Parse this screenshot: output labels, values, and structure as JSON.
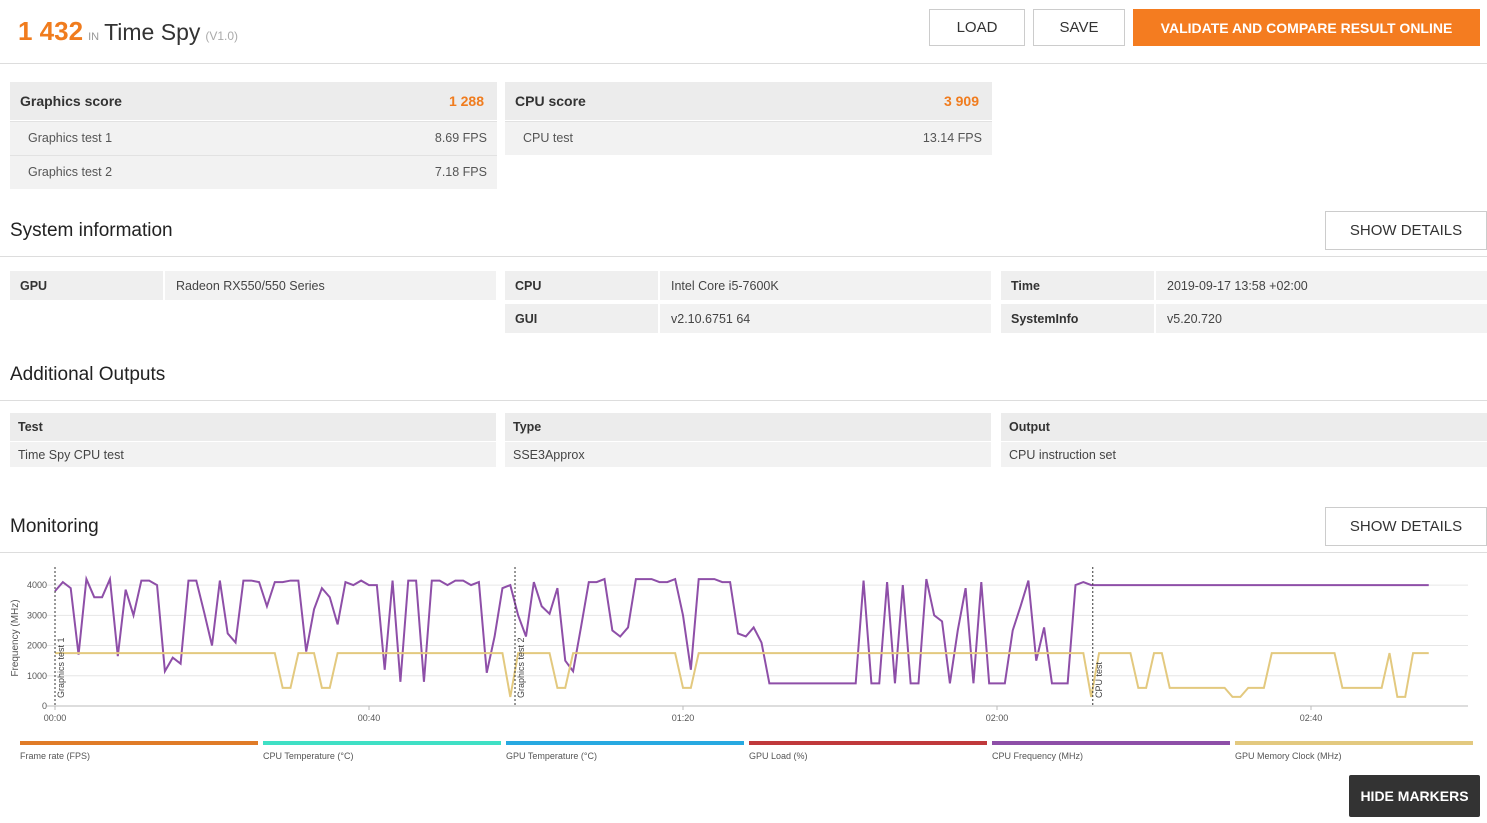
{
  "header": {
    "score": "1 432",
    "in": "IN",
    "title": "Time Spy",
    "version": "(V1.0)"
  },
  "buttons": {
    "load": "LOAD",
    "save": "SAVE",
    "validate": "VALIDATE AND COMPARE RESULT ONLINE",
    "hide_markers": "HIDE MARKERS"
  },
  "scores": [
    {
      "title": "Graphics score",
      "value": "1 288",
      "rows": [
        [
          "Graphics test 1",
          "8.69 FPS"
        ],
        [
          "Graphics test 2",
          "7.18 FPS"
        ]
      ]
    },
    {
      "title": "CPU score",
      "value": "3 909",
      "rows": [
        [
          "CPU test",
          "13.14 FPS"
        ]
      ]
    }
  ],
  "system_information": {
    "heading": "System information",
    "show_details": "SHOW DETAILS",
    "columns": [
      [
        [
          "GPU",
          "Radeon RX550/550 Series"
        ]
      ],
      [
        [
          "CPU",
          "Intel Core i5-7600K"
        ],
        [
          "GUI",
          "v2.10.6751 64"
        ]
      ],
      [
        [
          "Time",
          "2019-09-17 13:58 +02:00"
        ],
        [
          "SystemInfo",
          "v5.20.720"
        ]
      ]
    ]
  },
  "additional_outputs": {
    "heading": "Additional Outputs",
    "headers": [
      "Test",
      "Type",
      "Output"
    ],
    "rows": [
      [
        "Time Spy CPU test",
        "SSE3Approx",
        "CPU instruction set"
      ]
    ]
  },
  "monitoring": {
    "heading": "Monitoring",
    "show_details": "SHOW DETAILS"
  },
  "chart_data": {
    "type": "line",
    "y_label": "Frequency (MHz)",
    "x": [
      0,
      1,
      2,
      3,
      4,
      5,
      6,
      7,
      8,
      9,
      10,
      11,
      12,
      13,
      14,
      15,
      16,
      17,
      18,
      19,
      20,
      21,
      22,
      23,
      24,
      25,
      26,
      27,
      28,
      29,
      30,
      31,
      32,
      33,
      34,
      35,
      36,
      37,
      38,
      39,
      40,
      41,
      42,
      43,
      44,
      45,
      46,
      47,
      48,
      49,
      50,
      51,
      52,
      53,
      54,
      55,
      56,
      57,
      58,
      59,
      60,
      61,
      62,
      63,
      64,
      65,
      66,
      67,
      68,
      69,
      70,
      71,
      72,
      73,
      74,
      75,
      76,
      77,
      78,
      79,
      80,
      81,
      82,
      83,
      84,
      85,
      86,
      87,
      88,
      89,
      90,
      91,
      92,
      93,
      94,
      95,
      96,
      97,
      98,
      99,
      100,
      101,
      102,
      103,
      104,
      105,
      106,
      107,
      108,
      109,
      110,
      111,
      112,
      113,
      114,
      115,
      116,
      117,
      118,
      119,
      120,
      121,
      122,
      123,
      124,
      125,
      126,
      127,
      128,
      129,
      130,
      131,
      132,
      133,
      134,
      135,
      136,
      137,
      138,
      139,
      140,
      141,
      142,
      143,
      144,
      145,
      146,
      147,
      148,
      149,
      150,
      151,
      152,
      153,
      154,
      155,
      156,
      157,
      158,
      159,
      160,
      161,
      162,
      163,
      164,
      165,
      166,
      167,
      168,
      169,
      170,
      171,
      172,
      173,
      174,
      175
    ],
    "xlim": [
      0,
      180
    ],
    "xticks": [
      {
        "value": 0,
        "label": "00:00"
      },
      {
        "value": 40,
        "label": "00:40"
      },
      {
        "value": 80,
        "label": "01:20"
      },
      {
        "value": 120,
        "label": "02:00"
      },
      {
        "value": 160,
        "label": "02:40"
      }
    ],
    "ylim": [
      0,
      4500
    ],
    "yticks": [
      0,
      1000,
      2000,
      3000,
      4000
    ],
    "grid": true,
    "markers": [
      {
        "label": "Graphics test 1",
        "x": 0
      },
      {
        "label": "Graphics test 2",
        "x": 58.6
      },
      {
        "label": "CPU test",
        "x": 132.2
      }
    ],
    "series": [
      {
        "name": "Frame rate (FPS)",
        "color": "#e07b27",
        "values": null
      },
      {
        "name": "CPU Temperature (°C)",
        "color": "#3fe0c5",
        "values": null
      },
      {
        "name": "GPU Temperature (°C)",
        "color": "#27a9e1",
        "values": null
      },
      {
        "name": "GPU Load (%)",
        "color": "#c0393b",
        "values": null
      },
      {
        "name": "CPU Frequency (MHz)",
        "color": "#8e4fa8",
        "values": [
          3800,
          4100,
          3900,
          1700,
          4200,
          3600,
          3600,
          4200,
          1650,
          3850,
          3000,
          4150,
          4150,
          4000,
          1150,
          1600,
          1400,
          4150,
          4150,
          3100,
          2000,
          4150,
          2400,
          2100,
          4150,
          4150,
          4100,
          3300,
          4100,
          4100,
          4150,
          4150,
          1800,
          3200,
          3900,
          3600,
          2700,
          4100,
          4000,
          4150,
          4000,
          4000,
          1200,
          4150,
          800,
          4150,
          4150,
          800,
          4150,
          4150,
          4000,
          4150,
          4150,
          4000,
          4100,
          1100,
          2300,
          3900,
          4000,
          3000,
          2300,
          4100,
          3300,
          3050,
          3900,
          1500,
          1150,
          2600,
          4100,
          4100,
          4200,
          2500,
          2300,
          2600,
          4200,
          4200,
          4200,
          4100,
          4100,
          4200,
          3000,
          1200,
          4200,
          4200,
          4200,
          4100,
          4100,
          2400,
          2300,
          2600,
          2100,
          750,
          750,
          750,
          750,
          750,
          750,
          750,
          750,
          750,
          750,
          750,
          750,
          4150,
          750,
          750,
          4100,
          750,
          4000,
          750,
          750,
          4200,
          3000,
          2800,
          750,
          2500,
          3900,
          750,
          4100,
          750,
          750,
          750,
          2500,
          3300,
          4150,
          1500,
          2600,
          750,
          750,
          750,
          4000,
          4100,
          4000,
          4000,
          4000,
          4000,
          4000,
          4000,
          4000,
          4000,
          4000,
          4000,
          4000,
          4000,
          4000,
          4000,
          4000,
          4000,
          4000,
          4000,
          4000,
          4000,
          4000,
          4000,
          4000,
          4000,
          4000,
          4000,
          4000,
          4000,
          4000,
          4000,
          4000,
          4000,
          4000,
          4000,
          4000,
          4000,
          4000,
          4000,
          4000,
          4000,
          4000,
          4000,
          4000,
          4000
        ]
      },
      {
        "name": "GPU Memory Clock (MHz)",
        "color": "#e3c97f",
        "values": [
          1750,
          1750,
          1750,
          1750,
          1750,
          1750,
          1750,
          1750,
          1750,
          1750,
          1750,
          1750,
          1750,
          1750,
          1750,
          1750,
          1750,
          1750,
          1750,
          1750,
          1750,
          1750,
          1750,
          1750,
          1750,
          1750,
          1750,
          1750,
          1750,
          600,
          600,
          1750,
          1750,
          1750,
          600,
          600,
          1750,
          1750,
          1750,
          1750,
          1750,
          1750,
          1750,
          1750,
          1750,
          1750,
          1750,
          1750,
          1750,
          1750,
          1750,
          1750,
          1750,
          1750,
          1750,
          1750,
          1750,
          1750,
          300,
          1750,
          1750,
          1750,
          1750,
          1750,
          600,
          600,
          1750,
          1750,
          1750,
          1750,
          1750,
          1750,
          1750,
          1750,
          1750,
          1750,
          1750,
          1750,
          1750,
          1750,
          600,
          600,
          1750,
          1750,
          1750,
          1750,
          1750,
          1750,
          1750,
          1750,
          1750,
          1750,
          1750,
          1750,
          1750,
          1750,
          1750,
          1750,
          1750,
          1750,
          1750,
          1750,
          1750,
          1750,
          1750,
          1750,
          1750,
          1750,
          1750,
          1750,
          1750,
          1750,
          1750,
          1750,
          1750,
          1750,
          1750,
          1750,
          1750,
          1750,
          1750,
          1750,
          1750,
          1750,
          1750,
          1750,
          1750,
          1750,
          1750,
          1750,
          1750,
          1750,
          300,
          1750,
          1750,
          1750,
          1750,
          1750,
          600,
          600,
          1750,
          1750,
          600,
          600,
          600,
          600,
          600,
          600,
          600,
          600,
          300,
          300,
          600,
          600,
          600,
          1750,
          1750,
          1750,
          1750,
          1750,
          1750,
          1750,
          1750,
          1750,
          600,
          600,
          600,
          600,
          600,
          600,
          1750,
          300,
          300,
          1750,
          1750,
          1750
        ]
      }
    ]
  }
}
